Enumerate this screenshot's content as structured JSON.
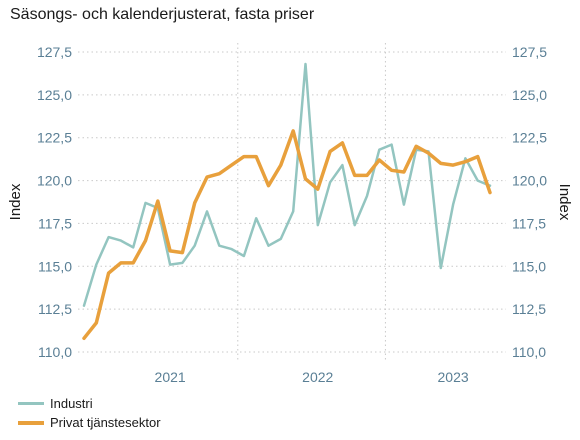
{
  "chart_data": {
    "type": "line",
    "subtitle": "Säsongs- och kalenderjusterat, fasta priser",
    "ylabel_left": "Index",
    "ylabel_right": "Index",
    "ylim": [
      110.0,
      127.5
    ],
    "yticks": [
      "110,0",
      "112,5",
      "115,0",
      "117,5",
      "120,0",
      "122,5",
      "125,0",
      "127,5"
    ],
    "ytick_values": [
      110.0,
      112.5,
      115.0,
      117.5,
      120.0,
      122.5,
      125.0,
      127.5
    ],
    "year_labels": [
      "2021",
      "2022",
      "2023"
    ],
    "year_centers": [
      7,
      19,
      30
    ],
    "year_separators": [
      12.5,
      24.5
    ],
    "grid": true,
    "legend_position": "bottom-left",
    "series": [
      {
        "name": "Industri",
        "color": "#93c5c0",
        "values": [
          112.7,
          115.1,
          116.7,
          116.5,
          116.1,
          118.7,
          118.4,
          115.1,
          115.2,
          116.2,
          118.2,
          116.2,
          116.0,
          115.6,
          117.8,
          116.2,
          116.6,
          118.2,
          126.8,
          117.4,
          119.9,
          120.9,
          117.4,
          119.1,
          121.8,
          122.1,
          118.6,
          121.8,
          121.7,
          114.9,
          118.6,
          121.3,
          120.0,
          119.7
        ]
      },
      {
        "name": "Privat tjänstesektor",
        "color": "#e8a03c",
        "values": [
          110.8,
          111.7,
          114.6,
          115.2,
          115.2,
          116.5,
          118.8,
          115.9,
          115.8,
          118.7,
          120.2,
          120.4,
          120.9,
          121.4,
          121.4,
          119.7,
          120.9,
          122.9,
          120.1,
          119.5,
          121.7,
          122.2,
          120.3,
          120.3,
          121.2,
          120.6,
          120.5,
          122.0,
          121.6,
          121.0,
          120.9,
          121.1,
          121.4,
          119.3
        ]
      }
    ]
  }
}
